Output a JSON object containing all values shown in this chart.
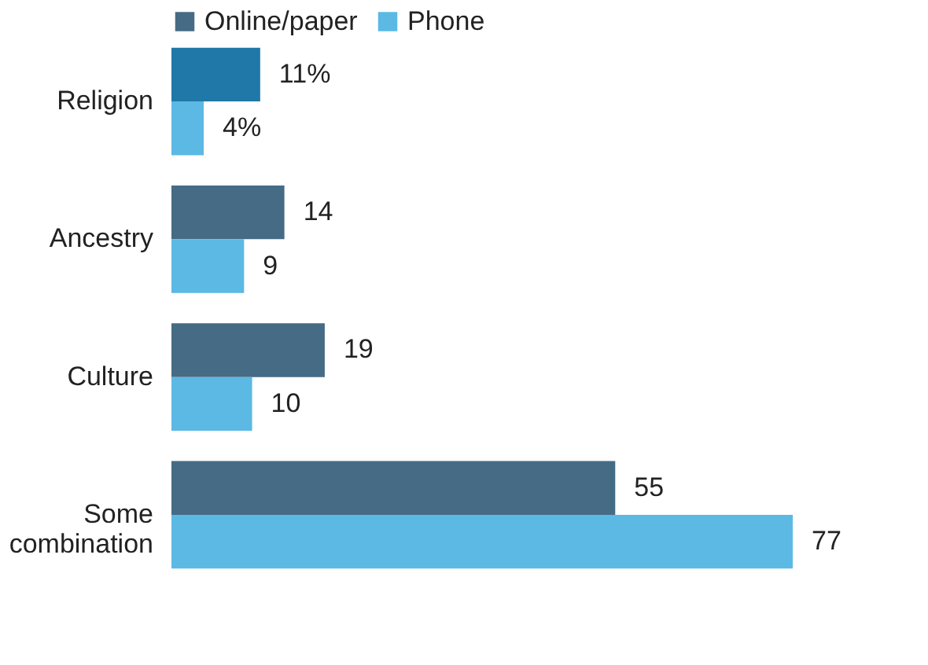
{
  "chart_data": {
    "type": "bar",
    "orientation": "horizontal",
    "categories": [
      "Religion",
      "Ancestry",
      "Culture",
      "Some combination"
    ],
    "series": [
      {
        "name": "Online/paper",
        "color": "#466b85",
        "colors": [
          "#2078a8",
          "#466b85",
          "#466b85",
          "#466b85"
        ],
        "values": [
          11,
          14,
          19,
          55
        ],
        "value_labels": [
          "11%",
          "14",
          "19",
          "55"
        ]
      },
      {
        "name": "Phone",
        "color": "#5bb9e4",
        "values": [
          4,
          9,
          10,
          77
        ],
        "value_labels": [
          "4%",
          "9",
          "10",
          "77"
        ]
      }
    ],
    "legend": "top"
  }
}
